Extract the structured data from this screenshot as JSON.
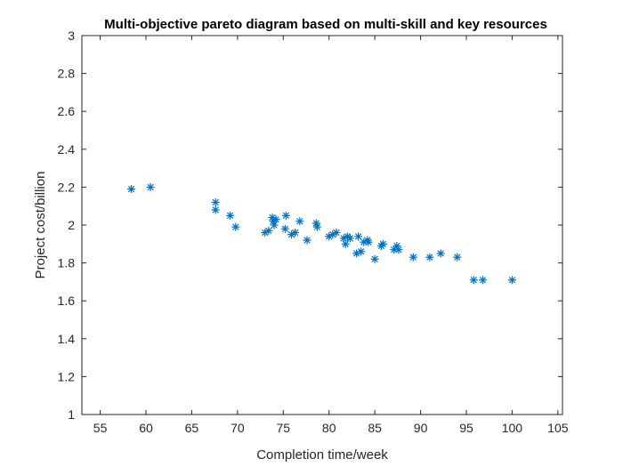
{
  "chart_data": {
    "type": "scatter",
    "title": "Multi-objective pareto diagram based on multi-skill and key resources",
    "xlabel": "Completion time/week",
    "ylabel": "Project cost/billion",
    "xlim": [
      53,
      105.5
    ],
    "ylim": [
      1,
      3
    ],
    "xticks": [
      55,
      60,
      65,
      70,
      75,
      80,
      85,
      90,
      95,
      100,
      105
    ],
    "yticks": [
      1,
      1.2,
      1.4,
      1.6,
      1.8,
      2,
      2.2,
      2.4,
      2.6,
      2.8,
      3
    ],
    "xtick_labels": [
      "55",
      "60",
      "65",
      "70",
      "75",
      "80",
      "85",
      "90",
      "95",
      "100",
      "105"
    ],
    "ytick_labels": [
      "1",
      "1.2",
      "1.4",
      "1.6",
      "1.8",
      "2",
      "2.2",
      "2.4",
      "2.6",
      "2.8",
      "3"
    ],
    "grid": false,
    "marker": "asterisk",
    "color": "#0072BD",
    "points": [
      [
        58.4,
        2.19
      ],
      [
        60.5,
        2.2
      ],
      [
        67.6,
        2.12
      ],
      [
        67.6,
        2.08
      ],
      [
        69.2,
        2.05
      ],
      [
        69.8,
        1.99
      ],
      [
        73.0,
        1.96
      ],
      [
        73.4,
        1.97
      ],
      [
        73.8,
        2.04
      ],
      [
        73.9,
        2.02
      ],
      [
        74.0,
        2.0
      ],
      [
        74.2,
        2.03
      ],
      [
        75.2,
        1.98
      ],
      [
        75.3,
        2.05
      ],
      [
        75.9,
        1.95
      ],
      [
        76.3,
        1.96
      ],
      [
        76.8,
        2.02
      ],
      [
        77.6,
        1.92
      ],
      [
        78.6,
        2.01
      ],
      [
        78.7,
        1.99
      ],
      [
        80.0,
        1.94
      ],
      [
        80.4,
        1.95
      ],
      [
        80.8,
        1.96
      ],
      [
        81.6,
        1.93
      ],
      [
        81.8,
        1.9
      ],
      [
        82.0,
        1.94
      ],
      [
        82.3,
        1.93
      ],
      [
        83.0,
        1.85
      ],
      [
        83.2,
        1.94
      ],
      [
        83.5,
        1.86
      ],
      [
        83.8,
        1.91
      ],
      [
        84.2,
        1.92
      ],
      [
        84.3,
        1.91
      ],
      [
        85.0,
        1.82
      ],
      [
        85.7,
        1.89
      ],
      [
        85.9,
        1.9
      ],
      [
        87.1,
        1.87
      ],
      [
        87.4,
        1.89
      ],
      [
        87.6,
        1.87
      ],
      [
        89.2,
        1.83
      ],
      [
        91.0,
        1.83
      ],
      [
        92.2,
        1.85
      ],
      [
        94.0,
        1.83
      ],
      [
        95.8,
        1.71
      ],
      [
        96.8,
        1.71
      ],
      [
        100.0,
        1.71
      ]
    ]
  }
}
